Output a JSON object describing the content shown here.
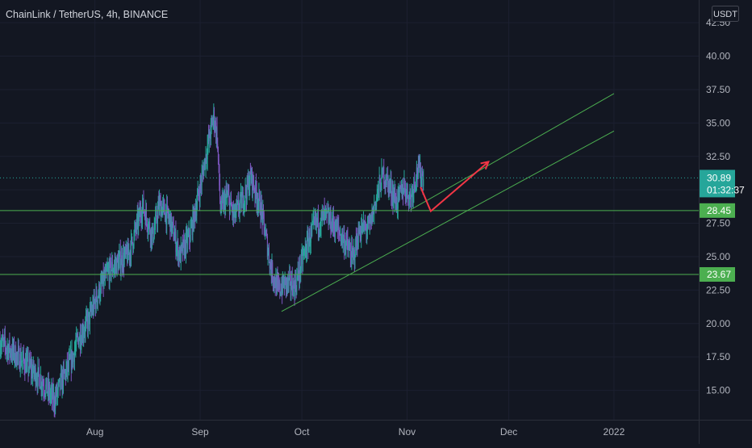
{
  "header": {
    "title": "ChainLink / TetherUS, 4h, BINANCE",
    "currency_button": "USDT"
  },
  "colors": {
    "background": "#131722",
    "candle_up": "#26a69a",
    "candle_down": "#7e57c2",
    "horizontal_line": "#4caf50",
    "trend_line": "#4caf50",
    "arrow": "#f23645",
    "price_tag": "#26a69a",
    "level_tag": "#4caf50"
  },
  "chart_data": {
    "type": "candlestick",
    "symbol": "ChainLink / TetherUS",
    "interval": "4h",
    "exchange": "BINANCE",
    "y_ticks": [
      15.0,
      17.5,
      20.0,
      22.5,
      25.0,
      27.5,
      30.0,
      32.5,
      35.0,
      37.5,
      40.0,
      42.5
    ],
    "y_tick_labels": [
      "15.00",
      "17.50",
      "20.00",
      "22.50",
      "25.00",
      "27.50",
      "30.00",
      "32.50",
      "35.00",
      "37.50",
      "40.00",
      "42.50"
    ],
    "ylim": [
      12.8,
      44.2
    ],
    "x_axis_labels": [
      {
        "label": "Aug",
        "date": "2021-08-01"
      },
      {
        "label": "Sep",
        "date": "2021-09-01"
      },
      {
        "label": "Oct",
        "date": "2021-10-01"
      },
      {
        "label": "Nov",
        "date": "2021-11-01"
      },
      {
        "label": "Dec",
        "date": "2021-12-01"
      },
      {
        "label": "2022",
        "date": "2022-01-01"
      }
    ],
    "xlim": [
      "2021-07-04",
      "2022-01-26"
    ],
    "price_path": [
      [
        "2021-07-04",
        18.6
      ],
      [
        "2021-07-08",
        17.8
      ],
      [
        "2021-07-12",
        16.9
      ],
      [
        "2021-07-16",
        15.8
      ],
      [
        "2021-07-20",
        14.2
      ],
      [
        "2021-07-22",
        15.6
      ],
      [
        "2021-07-25",
        17.2
      ],
      [
        "2021-07-27",
        18.8
      ],
      [
        "2021-07-30",
        20.2
      ],
      [
        "2021-08-02",
        22.3
      ],
      [
        "2021-08-05",
        23.9
      ],
      [
        "2021-08-08",
        24.6
      ],
      [
        "2021-08-11",
        25.2
      ],
      [
        "2021-08-13",
        27.0
      ],
      [
        "2021-08-15",
        28.8
      ],
      [
        "2021-08-18",
        26.5
      ],
      [
        "2021-08-20",
        28.9
      ],
      [
        "2021-08-23",
        27.8
      ],
      [
        "2021-08-26",
        25.0
      ],
      [
        "2021-08-29",
        26.6
      ],
      [
        "2021-09-01",
        30.2
      ],
      [
        "2021-09-03",
        33.0
      ],
      [
        "2021-09-05",
        35.5
      ],
      [
        "2021-09-06",
        34.0
      ],
      [
        "2021-09-07",
        28.5
      ],
      [
        "2021-09-09",
        29.5
      ],
      [
        "2021-09-11",
        28.0
      ],
      [
        "2021-09-14",
        29.5
      ],
      [
        "2021-09-16",
        31.0
      ],
      [
        "2021-09-19",
        28.5
      ],
      [
        "2021-09-22",
        24.0
      ],
      [
        "2021-09-24",
        22.5
      ],
      [
        "2021-09-26",
        23.0
      ],
      [
        "2021-09-29",
        22.8
      ],
      [
        "2021-10-02",
        25.5
      ],
      [
        "2021-10-05",
        27.5
      ],
      [
        "2021-10-08",
        28.0
      ],
      [
        "2021-10-11",
        27.2
      ],
      [
        "2021-10-14",
        26.0
      ],
      [
        "2021-10-16",
        24.8
      ],
      [
        "2021-10-18",
        27.0
      ],
      [
        "2021-10-21",
        27.2
      ],
      [
        "2021-10-23",
        29.5
      ],
      [
        "2021-10-25",
        31.2
      ],
      [
        "2021-10-27",
        30.2
      ],
      [
        "2021-10-29",
        29.0
      ],
      [
        "2021-10-31",
        30.3
      ],
      [
        "2021-11-02",
        29.4
      ],
      [
        "2021-11-04",
        31.5
      ],
      [
        "2021-11-06",
        30.9
      ]
    ],
    "horizontal_levels": [
      {
        "price": 28.45,
        "label": "28.45"
      },
      {
        "price": 23.67,
        "label": "23.67"
      }
    ],
    "last_price": {
      "value": 30.89,
      "label": "30.89",
      "countdown": "01:32:37"
    },
    "trend_lines": [
      {
        "from": [
          "2021-09-25",
          20.9
        ],
        "to": [
          "2022-01-01",
          34.4
        ]
      },
      {
        "from": [
          "2021-11-02",
          28.5
        ],
        "to": [
          "2022-01-01",
          37.2
        ]
      }
    ],
    "projection_arrow": [
      [
        "2021-11-05",
        30.2
      ],
      [
        "2021-11-08",
        28.4
      ],
      [
        "2021-11-25",
        32.1
      ]
    ]
  }
}
